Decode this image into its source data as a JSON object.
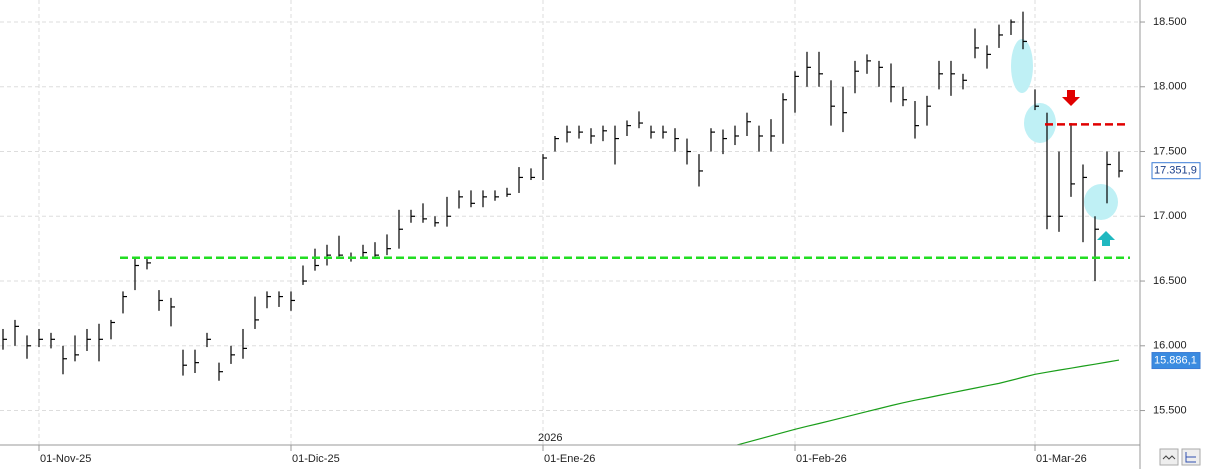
{
  "chart_data": {
    "type": "ohlc",
    "categories": [
      null,
      null,
      null,
      "01-Nov-25",
      null,
      null,
      null,
      null,
      null,
      null,
      null,
      null,
      null,
      null,
      null,
      null,
      null,
      null,
      null,
      null,
      null,
      null,
      null,
      null,
      "01-Dic-25",
      null,
      null,
      null,
      null,
      null,
      null,
      null,
      null,
      null,
      null,
      null,
      null,
      null,
      null,
      null,
      null,
      null,
      null,
      null,
      null,
      "01-Ene-26",
      null,
      null,
      null,
      null,
      null,
      null,
      null,
      null,
      null,
      null,
      null,
      null,
      null,
      null,
      null,
      null,
      null,
      null,
      null,
      null,
      "01-Feb-26",
      null,
      null,
      null,
      null,
      null,
      null,
      null,
      null,
      null,
      null,
      null,
      null,
      null,
      null,
      null,
      null,
      null,
      null,
      null,
      "01-Mar-26",
      null,
      null,
      null,
      null,
      null,
      null,
      null
    ],
    "high": [
      16130,
      16200,
      16080,
      16130,
      16100,
      16000,
      16080,
      16130,
      16170,
      16200,
      16420,
      16680,
      16680,
      16430,
      16370,
      15970,
      15970,
      16100,
      15870,
      16000,
      16130,
      16380,
      16420,
      16420,
      16420,
      16620,
      16750,
      16780,
      16850,
      16720,
      16780,
      16800,
      16860,
      17050,
      17050,
      17100,
      17000,
      17150,
      17200,
      17200,
      17200,
      17200,
      17220,
      17380,
      17370,
      17480,
      17620,
      17700,
      17700,
      17680,
      17700,
      17700,
      17740,
      17810,
      17700,
      17700,
      17680,
      17600,
      17480,
      17680,
      17670,
      17700,
      17800,
      17700,
      17750,
      17950,
      18120,
      18270,
      18270,
      18050,
      18000,
      18200,
      18250,
      18200,
      18180,
      18000,
      17890,
      17930,
      18200,
      18200,
      18100,
      18450,
      18320,
      18480,
      18520,
      18580,
      17980,
      17800,
      17500,
      17720,
      17400,
      17000,
      17500,
      17500
    ],
    "low": [
      15970,
      16000,
      15900,
      15990,
      15980,
      15780,
      15880,
      15960,
      15880,
      16050,
      16250,
      16430,
      16590,
      16270,
      16150,
      15770,
      15790,
      15990,
      15730,
      15860,
      15900,
      16130,
      16290,
      16300,
      16270,
      16470,
      16580,
      16620,
      16690,
      16650,
      16680,
      16670,
      16700,
      16750,
      16950,
      16950,
      16920,
      16920,
      17060,
      17070,
      17070,
      17120,
      17150,
      17180,
      17280,
      17280,
      17500,
      17570,
      17600,
      17560,
      17580,
      17400,
      17620,
      17680,
      17600,
      17600,
      17500,
      17400,
      17230,
      17500,
      17480,
      17550,
      17620,
      17500,
      17500,
      17560,
      17800,
      18000,
      18000,
      17700,
      17650,
      17950,
      18100,
      18000,
      17880,
      17850,
      17600,
      17700,
      17980,
      17930,
      17980,
      18220,
      18140,
      18300,
      18400,
      18290,
      17820,
      16900,
      16880,
      17150,
      16800,
      16500,
      17100,
      17300
    ],
    "close": [
      16050,
      16150,
      16000,
      16050,
      16050,
      15900,
      15930,
      16050,
      16050,
      16180,
      16380,
      16620,
      16640,
      16350,
      16300,
      15850,
      15870,
      16050,
      15800,
      15930,
      15980,
      16200,
      16380,
      16380,
      16350,
      16500,
      16620,
      16700,
      16700,
      16680,
      16720,
      16700,
      16750,
      16900,
      17000,
      16980,
      16950,
      17000,
      17150,
      17100,
      17150,
      17150,
      17170,
      17300,
      17300,
      17450,
      17600,
      17650,
      17650,
      17620,
      17660,
      17600,
      17700,
      17720,
      17650,
      17650,
      17600,
      17500,
      17350,
      17650,
      17600,
      17620,
      17730,
      17620,
      17620,
      17900,
      18080,
      18150,
      18100,
      17850,
      17800,
      18120,
      18200,
      18150,
      18000,
      17900,
      17700,
      17850,
      18100,
      18100,
      18050,
      18300,
      18250,
      18400,
      18500,
      18350,
      17850,
      17000,
      17000,
      17250,
      17300,
      16900,
      17400,
      17350
    ],
    "bar_color": "#000000",
    "ma": {
      "color": "#1a9e1a",
      "values": [
        null,
        null,
        null,
        null,
        null,
        null,
        null,
        null,
        null,
        null,
        null,
        null,
        null,
        null,
        null,
        null,
        null,
        null,
        null,
        null,
        null,
        null,
        null,
        null,
        null,
        null,
        null,
        null,
        null,
        null,
        null,
        null,
        null,
        null,
        null,
        null,
        null,
        null,
        null,
        null,
        null,
        null,
        null,
        null,
        null,
        null,
        null,
        null,
        null,
        null,
        null,
        null,
        null,
        null,
        null,
        null,
        null,
        null,
        null,
        null,
        null,
        15230,
        15255,
        15280,
        15305,
        15330,
        15355,
        15378,
        15400,
        15423,
        15446,
        15469,
        15492,
        15515,
        15538,
        15560,
        15580,
        15598,
        15617,
        15636,
        15655,
        15673,
        15692,
        15710,
        15733,
        15757,
        15780,
        15796,
        15812,
        15827,
        15843,
        15858,
        15874,
        15890
      ]
    },
    "levels": [
      {
        "value": 16680,
        "color": "#22dd22"
      },
      {
        "value": 17710,
        "color": "#e00000"
      }
    ],
    "last_close": {
      "value": 17351.9,
      "label": "17.351,9"
    },
    "last_ma": {
      "value": 15886.1,
      "label": "15.886,1"
    },
    "year_label": "2026",
    "ylim": [
      15234,
      18670
    ],
    "yticks": [
      {
        "value": 15500,
        "label": "15.500"
      },
      {
        "value": 16000,
        "label": "16.000"
      },
      {
        "value": 16500,
        "label": "16.500"
      },
      {
        "value": 17000,
        "label": "17.000"
      },
      {
        "value": 17500,
        "label": "17.500"
      },
      {
        "value": 18000,
        "label": "18.000"
      },
      {
        "value": 18500,
        "label": "18.500"
      }
    ],
    "grid": true
  }
}
